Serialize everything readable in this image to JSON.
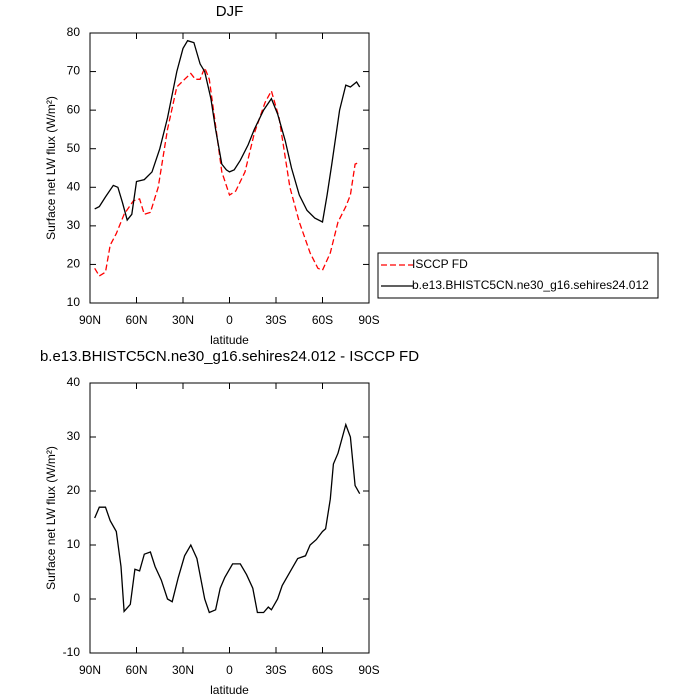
{
  "chart_data": [
    {
      "type": "line",
      "title": "DJF",
      "xlabel": "latitude",
      "ylabel": "Surface net LW flux (W/m²)",
      "xlim": [
        90,
        -90
      ],
      "xticks": [
        {
          "value": 90,
          "label": "90N"
        },
        {
          "value": 60,
          "label": "60N"
        },
        {
          "value": 30,
          "label": "30N"
        },
        0,
        {
          "value": -30,
          "label": "30S"
        },
        {
          "value": -60,
          "label": "60S"
        },
        {
          "value": -90,
          "label": "90S"
        }
      ],
      "ylim": [
        10,
        80
      ],
      "yticks": [
        10,
        20,
        30,
        40,
        50,
        60,
        70,
        80
      ],
      "legend": "right",
      "series": [
        {
          "name": "ISCCP FD",
          "color": "#ff0000",
          "dash": true,
          "x": [
            87,
            84,
            80,
            77,
            73,
            68,
            62,
            58,
            55,
            51,
            46,
            40,
            34,
            29,
            25,
            22,
            19,
            16,
            13,
            9,
            5,
            0,
            -4,
            -10,
            -16,
            -23,
            -27,
            -32,
            -39,
            -45,
            -52,
            -57,
            -60,
            -65,
            -70,
            -75,
            -78,
            -81,
            -84
          ],
          "values": [
            19,
            17,
            18,
            25,
            28,
            33,
            36.5,
            37,
            33,
            33.5,
            40,
            55,
            66,
            68,
            69.5,
            68,
            68,
            71,
            68,
            56,
            44,
            38,
            39,
            44,
            54,
            62,
            65,
            58,
            40,
            31,
            23,
            19,
            18.5,
            23,
            31,
            35,
            38,
            46,
            46.5
          ]
        },
        {
          "name": "b.e13.BHISTC5CN.ne30_g16.sehires24.012",
          "color": "#000000",
          "dash": false,
          "x": [
            87,
            84,
            80,
            75,
            72,
            69,
            66,
            63,
            60,
            55,
            50,
            45,
            40,
            34,
            30,
            27,
            23,
            19,
            16,
            12,
            9,
            5,
            2,
            0,
            -3,
            -7,
            -12,
            -16,
            -22,
            -27,
            -31,
            -36,
            -40,
            -45,
            -50,
            -55,
            -60,
            -63,
            -66,
            -71,
            -75,
            -78,
            -82,
            -84
          ],
          "values": [
            34.4,
            35,
            37.5,
            40.5,
            40,
            36,
            31.5,
            33,
            41.5,
            42,
            44,
            50,
            58,
            70,
            76,
            78,
            77.5,
            72,
            70,
            63,
            55,
            46,
            44.5,
            44,
            44.5,
            47,
            51,
            55,
            60,
            63,
            59,
            52,
            45,
            38,
            34,
            32,
            31,
            38,
            46,
            60,
            66.5,
            66,
            67.3,
            66
          ]
        }
      ]
    },
    {
      "type": "line",
      "title": "b.e13.BHISTC5CN.ne30_g16.sehires24.012 - ISCCP FD",
      "xlabel": "latitude",
      "ylabel": "Surface net LW flux (W/m²)",
      "xlim": [
        90,
        -90
      ],
      "xticks": [
        {
          "value": 90,
          "label": "90N"
        },
        {
          "value": 60,
          "label": "60N"
        },
        {
          "value": 30,
          "label": "30N"
        },
        0,
        {
          "value": -30,
          "label": "30S"
        },
        {
          "value": -60,
          "label": "60S"
        },
        {
          "value": -90,
          "label": "90S"
        }
      ],
      "ylim": [
        -10,
        40
      ],
      "yticks": [
        -10,
        0,
        10,
        20,
        30,
        40
      ],
      "series": [
        {
          "color": "#000000",
          "dash": false,
          "x": [
            87,
            84,
            80,
            77,
            73,
            70,
            68,
            64,
            61,
            58,
            55,
            51,
            48,
            44,
            40,
            37,
            33,
            29,
            25,
            21,
            16,
            13,
            9,
            6,
            3,
            -2,
            -7,
            -11,
            -15,
            -18,
            -22,
            -25,
            -27,
            -31,
            -34,
            -40,
            -44,
            -49,
            -52,
            -56,
            -60,
            -62,
            -65,
            -67,
            -70,
            -75,
            -78,
            -81,
            -84
          ],
          "values": [
            15,
            17,
            17,
            14.5,
            12.5,
            6,
            -2.3,
            -1,
            5.5,
            5.2,
            8.3,
            8.7,
            6,
            3.5,
            0,
            -0.5,
            4,
            8,
            10,
            7.5,
            0,
            -2.5,
            -2,
            2,
            4,
            6.5,
            6.5,
            4.5,
            2,
            -2.5,
            -2.5,
            -1.5,
            -2,
            0,
            2.5,
            5.5,
            7.5,
            8,
            10,
            11,
            12.5,
            13,
            18.5,
            25,
            27,
            32.3,
            30,
            21,
            19.5
          ]
        }
      ]
    }
  ]
}
